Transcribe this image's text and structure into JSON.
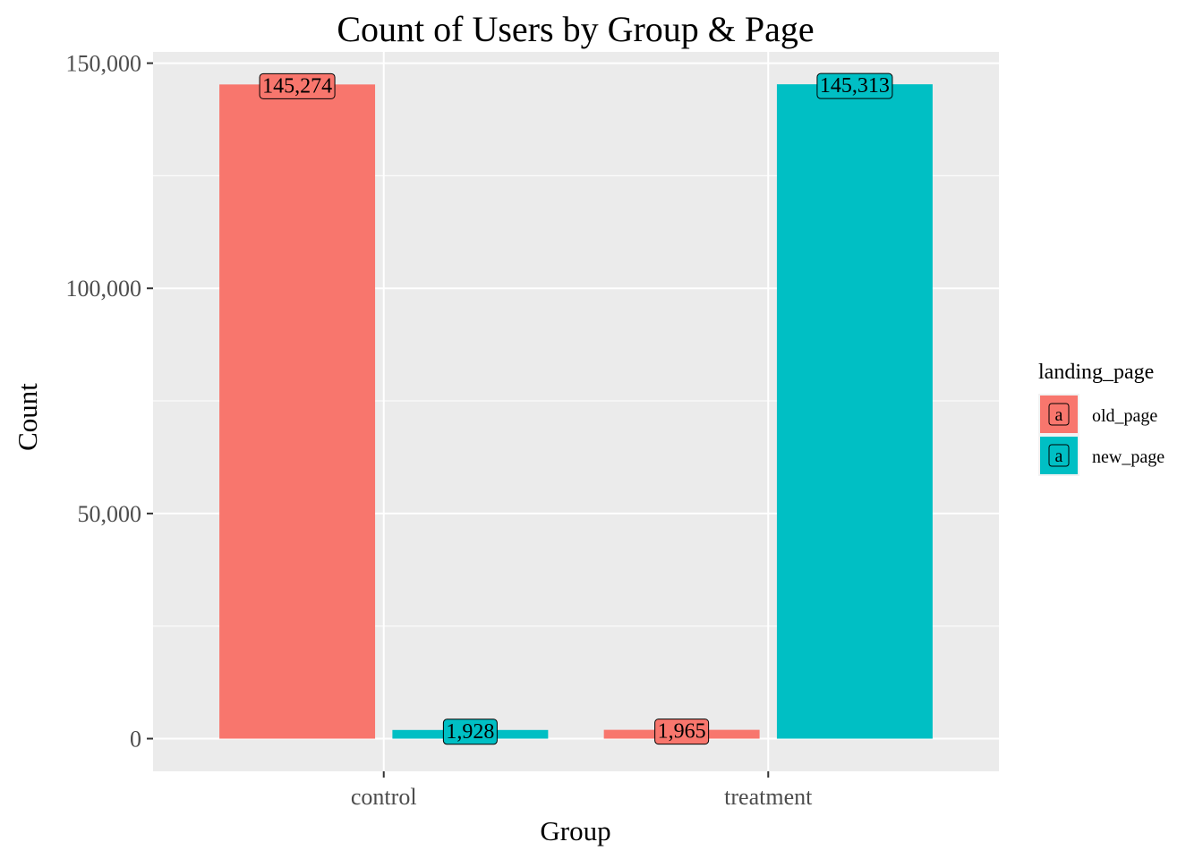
{
  "chart_data": {
    "type": "bar",
    "title": "Count of Users by Group & Page",
    "xlabel": "Group",
    "ylabel": "Count",
    "categories": [
      "control",
      "treatment"
    ],
    "series": [
      {
        "name": "old_page",
        "color": "#F8766D",
        "values": [
          145274,
          1965
        ]
      },
      {
        "name": "new_page",
        "color": "#00BFC4",
        "values": [
          1928,
          145313
        ]
      }
    ],
    "bar_order": [
      {
        "category": 0,
        "series": 0
      },
      {
        "category": 0,
        "series": 1
      },
      {
        "category": 1,
        "series": 0
      },
      {
        "category": 1,
        "series": 1
      }
    ],
    "value_labels": [
      "145,274",
      "1,928",
      "1,965",
      "145,313"
    ],
    "ylim": [
      -7250,
      152500
    ],
    "yticks": [
      0,
      50000,
      100000,
      150000
    ],
    "ytick_labels": [
      "0",
      "50,000",
      "100,000",
      "150,000"
    ],
    "grid": true,
    "legend": {
      "title": "landing_page",
      "position": "right",
      "key_glyph": "a",
      "entries": [
        "old_page",
        "new_page"
      ]
    },
    "panel_background": "#EBEBEB"
  }
}
